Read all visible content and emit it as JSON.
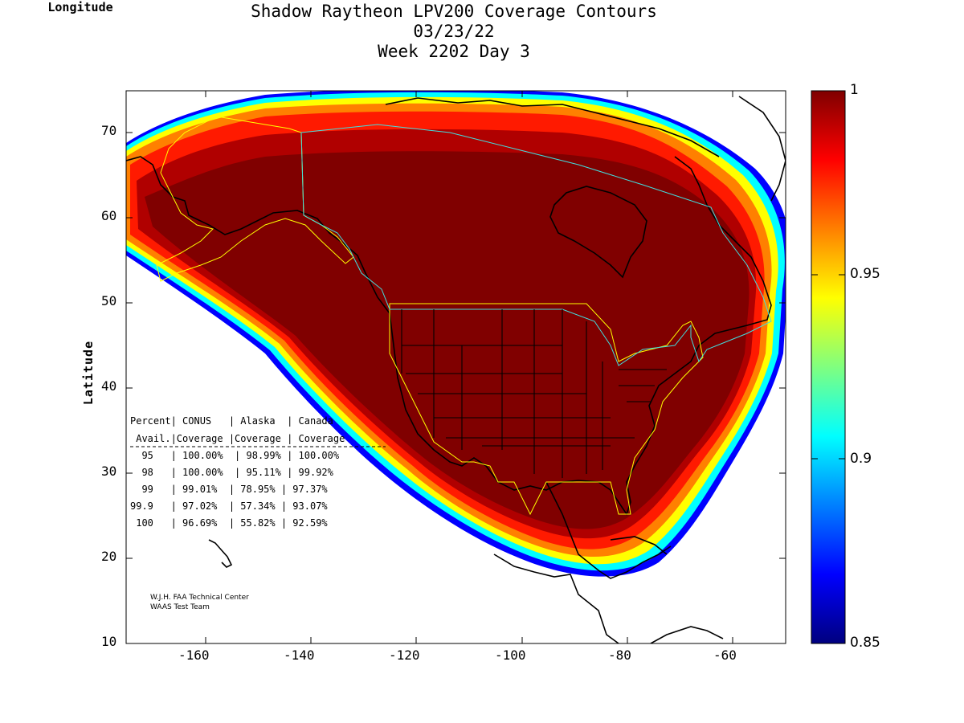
{
  "title_lines": [
    "Shadow Raytheon LPV200 Coverage Contours",
    "03/23/22",
    "Week 2202 Day 3"
  ],
  "axes": {
    "xlabel": "Longitude",
    "ylabel": "Latitude",
    "x_ticks": [
      "-160",
      "-140",
      "-120",
      "-100",
      "-80",
      "-60"
    ],
    "y_ticks": [
      "10",
      "20",
      "30",
      "40",
      "50",
      "60",
      "70"
    ],
    "x_range": [
      -175,
      -50
    ],
    "y_range": [
      10,
      75
    ]
  },
  "colorbar": {
    "ticks": [
      "1",
      "0.95",
      "0.9",
      "0.85"
    ],
    "range": [
      0.85,
      1.0
    ],
    "colormap": "jet"
  },
  "coverage_table": {
    "header1": "Percent| CONUS   | Alaska  | Canada",
    "header2": " Avail.|Coverage |Coverage | Coverage",
    "divider": "------------------------------------",
    "rows": [
      "  95   | 100.00%  | 98.99% | 100.00%",
      "  98   | 100.00%  | 95.11% | 99.92%",
      "  99   | 99.01%  | 78.95% | 97.37%",
      "99.9   | 97.02%  | 57.34% | 93.07%",
      " 100   | 96.69%  | 55.82% | 92.59%"
    ]
  },
  "credit": [
    "W.J.H. FAA Technical Center",
    "WAAS Test Team"
  ],
  "colors": {
    "full_coverage": "#800000",
    "coast": "#000000",
    "conus_boundary": "#ffff00",
    "canada_boundary": "#40e0e0"
  }
}
